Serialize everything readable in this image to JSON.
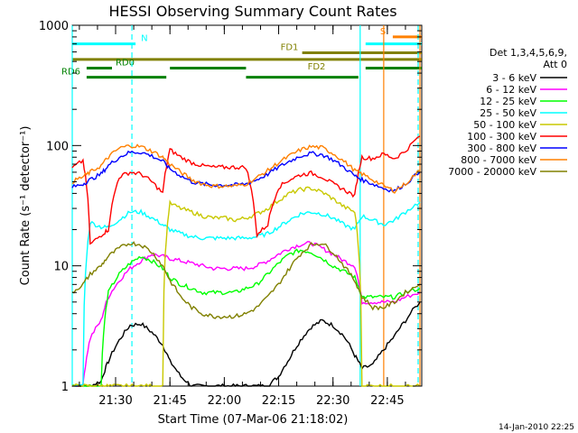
{
  "chart_data": {
    "type": "line",
    "title": "HESSI Observing Summary Count Rates",
    "ylabel": "Count Rate (s⁻¹ detector⁻¹)",
    "xlabel": "Start Time (07-Mar-06 21:18:02)",
    "y_scale": "log",
    "ylim": [
      1,
      1000
    ],
    "xlim_minutes": [
      21.3,
      21.5
    ],
    "x_range": [
      "21:18:02",
      "22:54:30"
    ],
    "x_ticks": [
      "21:30",
      "21:45",
      "22:00",
      "22:15",
      "22:30",
      "22:45"
    ],
    "y_ticks": [
      "1",
      "10",
      "100",
      "1000"
    ],
    "grid": false,
    "legend_title": [
      "Det 1,3,4,5,6,9,",
      "Att 0"
    ],
    "legend_position": "right",
    "footer": "14-Jan-2010 22:25",
    "flag_bars": [
      {
        "label": "N",
        "color": "#00ffff",
        "y": 700,
        "segments": [
          [
            "21:18:02",
            "21:35:30"
          ],
          [
            "22:39:00",
            "22:54:30"
          ]
        ]
      },
      {
        "label": "S",
        "color": "#ff8000",
        "y": 800,
        "segments": [
          [
            "22:46:30",
            "22:54:30"
          ]
        ]
      },
      {
        "label": "FD1",
        "color": "#808000",
        "y": 590,
        "segments": [
          [
            "22:21:30",
            "22:54:30"
          ]
        ]
      },
      {
        "label": "FD2",
        "color": "#808000",
        "y": 520,
        "segments": [
          [
            "21:18:02",
            "22:54:30"
          ]
        ]
      },
      {
        "label": "RD0",
        "color": "#008000",
        "y": 440,
        "segments": [
          [
            "21:22:00",
            "21:29:00"
          ],
          [
            "21:45:00",
            "22:06:00"
          ],
          [
            "22:39:00",
            "22:54:30"
          ]
        ]
      },
      {
        "label": "RD6",
        "color": "#008000",
        "y": 370,
        "segments": [
          [
            "21:22:00",
            "21:44:00"
          ],
          [
            "22:06:00",
            "22:37:00"
          ]
        ]
      }
    ],
    "vlines": [
      {
        "time": "21:18:02",
        "color": "#00ffff",
        "style": "solid"
      },
      {
        "time": "21:34:30",
        "color": "#00ffff",
        "style": "dashed"
      },
      {
        "time": "22:37:30",
        "color": "#00ffff",
        "style": "solid"
      },
      {
        "time": "22:44:00",
        "color": "#ff8000",
        "style": "solid"
      },
      {
        "time": "22:53:30",
        "color": "#00ffff",
        "style": "dashed"
      },
      {
        "time": "22:54:00",
        "color": "#ff8000",
        "style": "solid"
      }
    ],
    "x": [
      "21:18",
      "21:21",
      "21:23",
      "21:26",
      "21:28",
      "21:31",
      "21:34",
      "21:37",
      "21:40",
      "21:43",
      "21:45",
      "21:48",
      "21:51",
      "21:54",
      "21:57",
      "22:00",
      "22:03",
      "22:06",
      "22:09",
      "22:12",
      "22:15",
      "22:18",
      "22:21",
      "22:24",
      "22:27",
      "22:30",
      "22:33",
      "22:36",
      "22:38",
      "22:41",
      "22:44",
      "22:47",
      "22:50",
      "22:54"
    ],
    "series": [
      {
        "name": "3 - 6 keV",
        "color": "#000000",
        "values": [
          1,
          1,
          1,
          1.1,
          1.6,
          2.4,
          3.2,
          3.3,
          2.8,
          2.2,
          1.6,
          1.2,
          1,
          1,
          1,
          1,
          1,
          1,
          1,
          1,
          1.2,
          1.7,
          2.4,
          3.1,
          3.5,
          3.2,
          2.6,
          1.8,
          1.4,
          1.5,
          2,
          2.6,
          3.5,
          5
        ]
      },
      {
        "name": "6 - 12 keV",
        "color": "#ff00ff",
        "values": [
          1,
          1,
          2.5,
          3.5,
          5.5,
          7.5,
          9.5,
          11,
          12.5,
          12,
          11.5,
          11,
          10.5,
          10,
          9.5,
          9.5,
          9.5,
          9.5,
          10,
          11,
          12.5,
          14,
          15,
          15.5,
          14,
          12.5,
          11,
          10,
          5,
          5,
          5,
          5,
          5.5,
          6
        ]
      },
      {
        "name": "12 - 25 keV",
        "color": "#00ff00",
        "values": [
          1,
          1,
          1,
          1,
          6,
          8.5,
          10.5,
          12,
          11,
          9.5,
          8,
          7,
          6.5,
          6,
          6,
          6,
          6,
          6.5,
          7,
          8.5,
          10.5,
          12.5,
          13.5,
          13,
          11.5,
          10,
          9,
          8,
          5.5,
          5.5,
          5.5,
          5.5,
          6,
          6.5
        ]
      },
      {
        "name": "25 - 50 keV",
        "color": "#00ffff",
        "values": [
          1,
          1,
          23,
          21,
          21,
          24,
          28,
          28,
          25,
          22,
          20,
          18.5,
          17.5,
          17,
          17,
          17,
          17,
          17,
          17.5,
          18.5,
          21,
          24,
          27,
          28,
          27,
          25,
          22,
          20,
          26,
          24,
          22,
          24,
          28,
          34
        ]
      },
      {
        "name": "50 - 100 keV",
        "color": "#c8c800",
        "values": [
          1,
          1,
          1,
          1,
          1,
          1,
          1,
          1,
          1,
          1,
          33,
          30,
          28,
          26,
          25,
          25,
          24,
          25,
          27,
          30,
          35,
          40,
          43,
          44,
          41,
          36,
          31,
          28,
          1,
          1,
          1,
          1,
          1,
          1
        ]
      },
      {
        "name": "100 - 300 keV",
        "color": "#ff0000",
        "values": [
          65,
          75,
          15,
          18,
          20,
          55,
          60,
          58,
          50,
          40,
          92,
          80,
          72,
          68,
          66,
          66,
          66,
          66,
          18,
          22,
          45,
          52,
          57,
          59,
          55,
          48,
          43,
          38,
          80,
          78,
          85,
          78,
          90,
          120
        ]
      },
      {
        "name": "300 - 800 keV",
        "color": "#0000ff",
        "values": [
          45,
          48,
          52,
          58,
          68,
          80,
          88,
          88,
          82,
          74,
          64,
          56,
          50,
          48,
          47,
          47,
          47,
          48,
          52,
          58,
          66,
          74,
          82,
          86,
          84,
          76,
          66,
          56,
          52,
          48,
          44,
          42,
          48,
          60
        ]
      },
      {
        "name": "800 - 7000 keV",
        "color": "#ff8000",
        "values": [
          50,
          55,
          60,
          68,
          80,
          95,
          100,
          98,
          90,
          80,
          70,
          60,
          52,
          48,
          46,
          46,
          46,
          48,
          54,
          62,
          72,
          82,
          92,
          98,
          96,
          86,
          74,
          62,
          58,
          52,
          46,
          42,
          48,
          62
        ]
      },
      {
        "name": "7000 - 20000 keV",
        "color": "#808000",
        "values": [
          6,
          7,
          8.5,
          10,
          12,
          14,
          15.5,
          15,
          13,
          10,
          7.5,
          5.5,
          4.5,
          4,
          3.8,
          3.8,
          3.8,
          4,
          4.5,
          5.5,
          7,
          9.5,
          12.5,
          15,
          15.5,
          13,
          10,
          7.5,
          5.5,
          4.5,
          4.5,
          5,
          6,
          7
        ]
      }
    ]
  }
}
